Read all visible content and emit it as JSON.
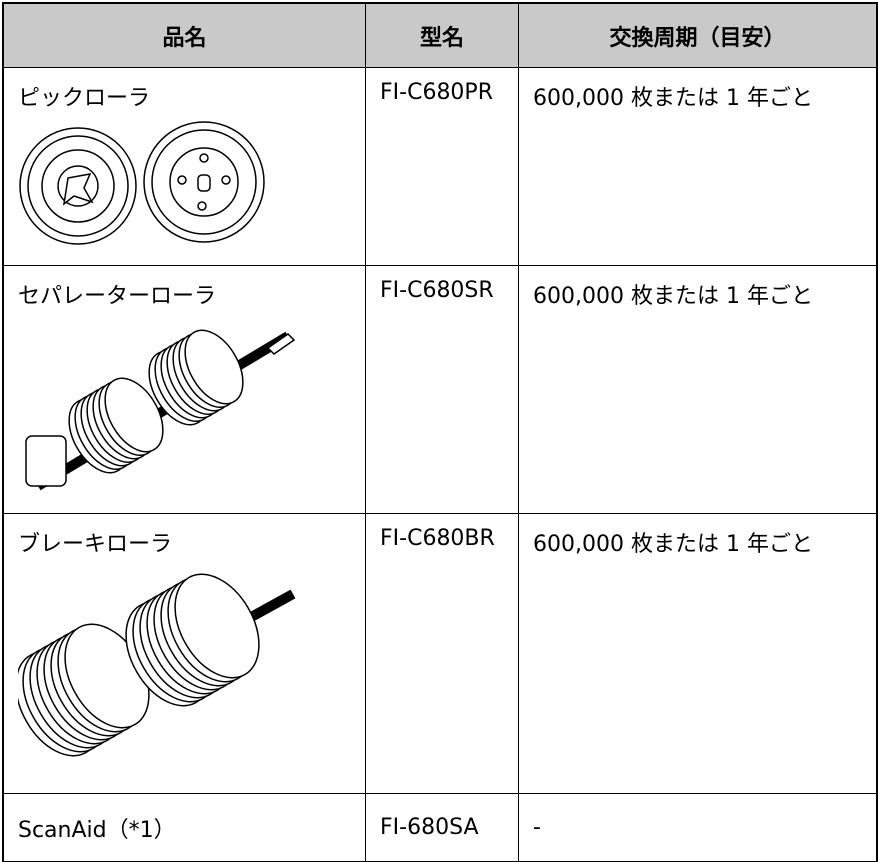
{
  "table": {
    "headers": [
      "品名",
      "型名",
      "交換周期（目安）"
    ],
    "rows": [
      [
        "ピックローラ",
        "FI-C680PR",
        "600,000 枚または 1 年ごと"
      ],
      [
        "セパレーターローラ",
        "FI-C680SR",
        "600,000 枚または 1 年ごと"
      ],
      [
        "ブレーキローラ",
        "FI-C680BR",
        "600,000 枚または 1 年ごと"
      ],
      [
        "ScanAid（*1）",
        "FI-680SA",
        "-"
      ]
    ]
  }
}
